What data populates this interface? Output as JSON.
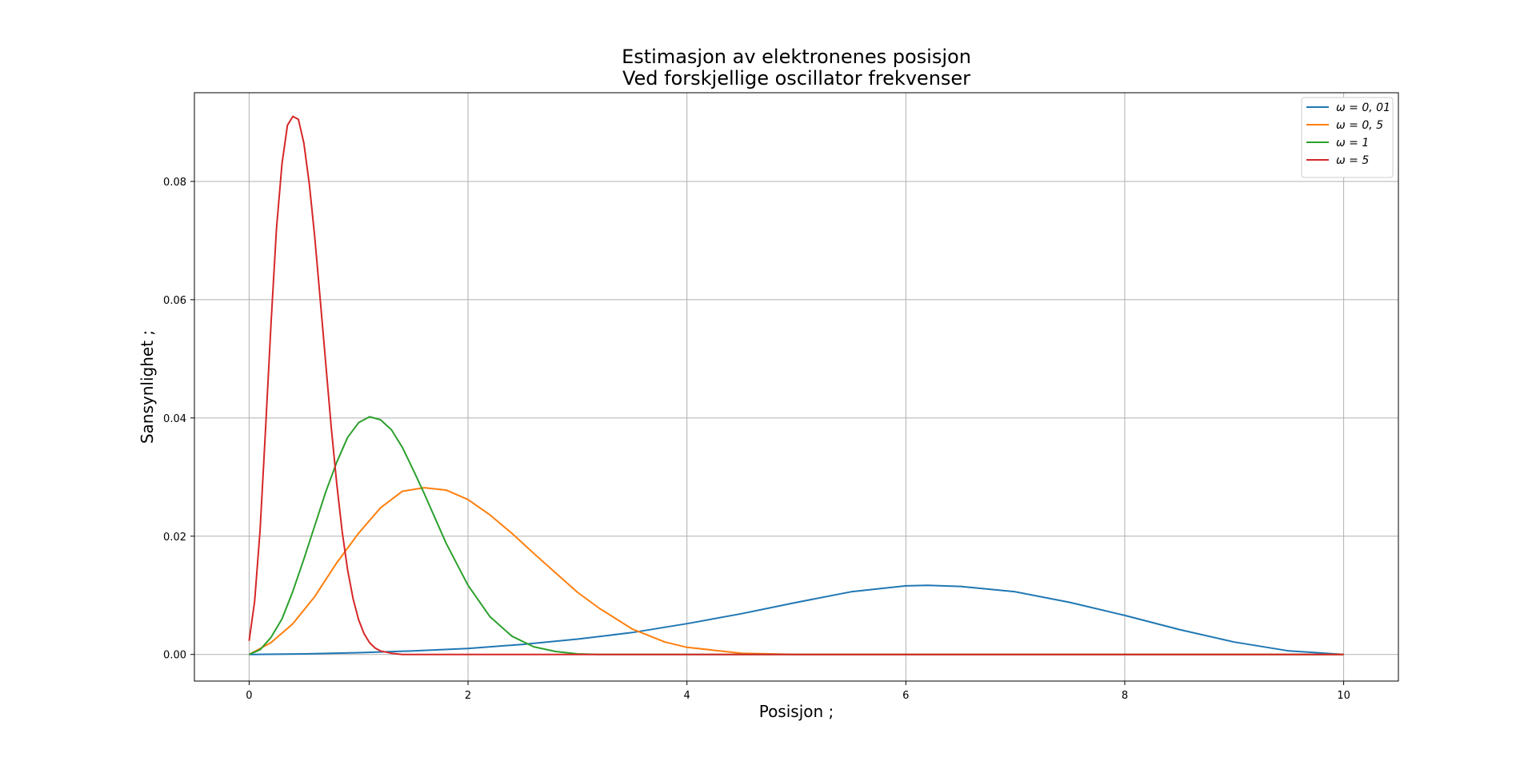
{
  "chart_data": {
    "type": "line",
    "title": "Estimasjon av elektronenes posisjon",
    "subtitle": "Ved forskjellige oscillator frekvenser",
    "xlabel": "Posisjon ;",
    "ylabel": "Sansynlighet ;",
    "xlim": [
      -0.5,
      10.5
    ],
    "ylim": [
      -0.0045,
      0.095
    ],
    "xticks": [
      0,
      2,
      4,
      6,
      8,
      10
    ],
    "yticks": [
      0.0,
      0.02,
      0.04,
      0.06,
      0.08
    ],
    "xtick_labels": [
      "0",
      "2",
      "4",
      "6",
      "8",
      "10"
    ],
    "ytick_labels": [
      "0.00",
      "0.02",
      "0.04",
      "0.06",
      "0.08"
    ],
    "grid": true,
    "legend_position": "top-right",
    "series": [
      {
        "name": "ω = 0, 01",
        "color": "#1f77b4",
        "x": [
          0,
          0.5,
          1,
          1.5,
          2,
          2.5,
          3,
          3.5,
          4,
          4.5,
          5,
          5.5,
          6,
          6.2,
          6.5,
          7,
          7.5,
          8,
          8.5,
          9,
          9.5,
          10
        ],
        "y": [
          0,
          0.0001,
          0.0003,
          0.0006,
          0.001,
          0.0017,
          0.0026,
          0.0037,
          0.0052,
          0.0069,
          0.0088,
          0.0106,
          0.0116,
          0.0117,
          0.0115,
          0.0106,
          0.0088,
          0.0066,
          0.0042,
          0.0021,
          0.0006,
          0
        ]
      },
      {
        "name": "ω = 0, 5",
        "color": "#ff7f0e",
        "x": [
          0,
          0.2,
          0.4,
          0.6,
          0.8,
          1.0,
          1.2,
          1.4,
          1.6,
          1.8,
          2.0,
          2.2,
          2.4,
          2.6,
          2.8,
          3.0,
          3.2,
          3.5,
          3.8,
          4.0,
          4.5,
          5,
          6,
          8,
          10
        ],
        "y": [
          0,
          0.002,
          0.0052,
          0.0098,
          0.0155,
          0.0205,
          0.0248,
          0.0276,
          0.0282,
          0.0278,
          0.0262,
          0.0236,
          0.0205,
          0.0171,
          0.0138,
          0.0105,
          0.0078,
          0.0043,
          0.0021,
          0.0012,
          0.0002,
          0,
          0,
          0,
          0
        ]
      },
      {
        "name": "ω = 1",
        "color": "#2ca02c",
        "x": [
          0,
          0.1,
          0.2,
          0.3,
          0.4,
          0.5,
          0.6,
          0.7,
          0.8,
          0.9,
          1.0,
          1.1,
          1.2,
          1.3,
          1.4,
          1.5,
          1.6,
          1.8,
          2.0,
          2.2,
          2.4,
          2.6,
          2.8,
          3.0,
          3.2,
          3.5,
          4,
          6,
          8,
          10
        ],
        "y": [
          0,
          0.0008,
          0.0029,
          0.006,
          0.0107,
          0.0161,
          0.0218,
          0.0275,
          0.0325,
          0.0367,
          0.0392,
          0.0402,
          0.0397,
          0.038,
          0.035,
          0.0312,
          0.0272,
          0.0188,
          0.0117,
          0.0064,
          0.0031,
          0.0013,
          0.0005,
          0.0001,
          0,
          0,
          0,
          0,
          0,
          0
        ]
      },
      {
        "name": "ω = 5",
        "color": "#d62728",
        "x": [
          0,
          0.05,
          0.1,
          0.15,
          0.2,
          0.25,
          0.3,
          0.35,
          0.4,
          0.45,
          0.5,
          0.55,
          0.6,
          0.65,
          0.7,
          0.75,
          0.8,
          0.85,
          0.9,
          0.95,
          1.0,
          1.05,
          1.1,
          1.15,
          1.2,
          1.3,
          1.4,
          1.6,
          2,
          4,
          6,
          8,
          10
        ],
        "y": [
          0.0023,
          0.009,
          0.021,
          0.038,
          0.056,
          0.072,
          0.083,
          0.0895,
          0.091,
          0.0905,
          0.0865,
          0.0795,
          0.0705,
          0.06,
          0.0492,
          0.0385,
          0.0289,
          0.0208,
          0.0143,
          0.0094,
          0.0059,
          0.0035,
          0.002,
          0.0011,
          0.0006,
          0.0002,
          0,
          0,
          0,
          0,
          0,
          0,
          0
        ]
      }
    ]
  }
}
